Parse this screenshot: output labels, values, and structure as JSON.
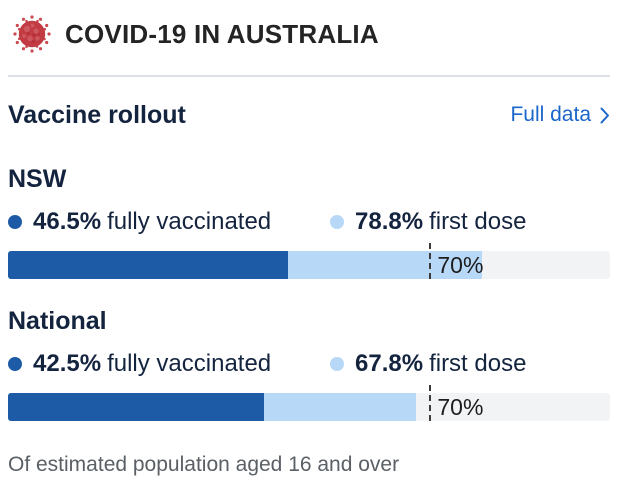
{
  "header": {
    "icon": "coronavirus-icon",
    "title": "COVID-19 IN AUSTRALIA"
  },
  "section": {
    "title": "Vaccine rollout",
    "link": {
      "label": "Full data"
    }
  },
  "footer": {
    "note": "Of estimated population aged 16 and over"
  },
  "colors": {
    "fully_vaccinated": "#1e5ba6",
    "first_dose": "#b7d8f7",
    "bar_track": "#f1f3f5",
    "link": "#1b66cb",
    "virus_red": "#c23a42",
    "navy_text": "#14243f"
  },
  "chart_data": {
    "type": "bar",
    "title": "Vaccine rollout",
    "note": "Of estimated population aged 16 and over",
    "unit": "percent of population aged 16 and over",
    "xlim": [
      0,
      100
    ],
    "target": {
      "value": 70,
      "label": "70%"
    },
    "groups": [
      {
        "category": "NSW",
        "series": [
          {
            "name": "fully vaccinated",
            "value": 46.5,
            "display": "46.5%"
          },
          {
            "name": "first dose",
            "value": 78.8,
            "display": "78.8%"
          }
        ]
      },
      {
        "category": "National",
        "series": [
          {
            "name": "fully vaccinated",
            "value": 42.5,
            "display": "42.5%"
          },
          {
            "name": "first dose",
            "value": 67.8,
            "display": "67.8%"
          }
        ]
      }
    ]
  }
}
